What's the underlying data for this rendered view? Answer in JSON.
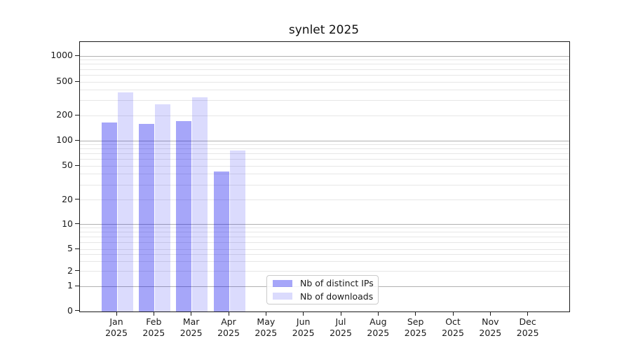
{
  "title": "synlet 2025",
  "chart_data": {
    "type": "bar",
    "title": "synlet 2025",
    "categories": [
      "Jan",
      "Feb",
      "Mar",
      "Apr",
      "May",
      "Jun",
      "Jul",
      "Aug",
      "Sep",
      "Oct",
      "Nov",
      "Dec"
    ],
    "category_year": "2025",
    "series": [
      {
        "name": "Nb of distinct IPs",
        "color": "rgba(0,0,238,0.35)",
        "values": [
          165,
          160,
          171,
          43,
          0,
          0,
          0,
          0,
          0,
          0,
          0,
          0
        ]
      },
      {
        "name": "Nb of downloads",
        "color": "rgba(0,0,238,0.14)",
        "values": [
          375,
          270,
          330,
          77,
          0,
          0,
          0,
          0,
          0,
          0,
          0,
          0
        ]
      }
    ],
    "yscale": "asinh (log-like with linear region near 0)",
    "ytick_labels": [
      "1000",
      "500",
      "200",
      "100",
      "50",
      "20",
      "10",
      "5",
      "2",
      "1",
      "0"
    ],
    "ytick_values": [
      1000,
      500,
      200,
      100,
      50,
      20,
      10,
      5,
      2,
      1,
      0
    ],
    "major_grid_values": [
      1000,
      100,
      10,
      1
    ],
    "minor_grid_values": [
      900,
      800,
      700,
      600,
      500,
      400,
      300,
      200,
      90,
      80,
      70,
      60,
      50,
      40,
      30,
      20,
      9,
      8,
      7,
      6,
      5,
      4,
      3,
      2
    ],
    "ylim": [
      0,
      1300
    ],
    "grid": "on",
    "legend_position": "lower center (inside axes)",
    "colors": {
      "bar_distinct_ips": "rgba(0,0,238,0.35)",
      "bar_downloads": "rgba(0,0,238,0.14)",
      "grid_major": "#b0b0b0",
      "grid_minor": "#e7e7e7",
      "spine": "#1a1a1a",
      "text": "#1a1a1a"
    }
  },
  "legend": {
    "items": [
      {
        "label": "Nb of distinct IPs"
      },
      {
        "label": "Nb of downloads"
      }
    ]
  }
}
